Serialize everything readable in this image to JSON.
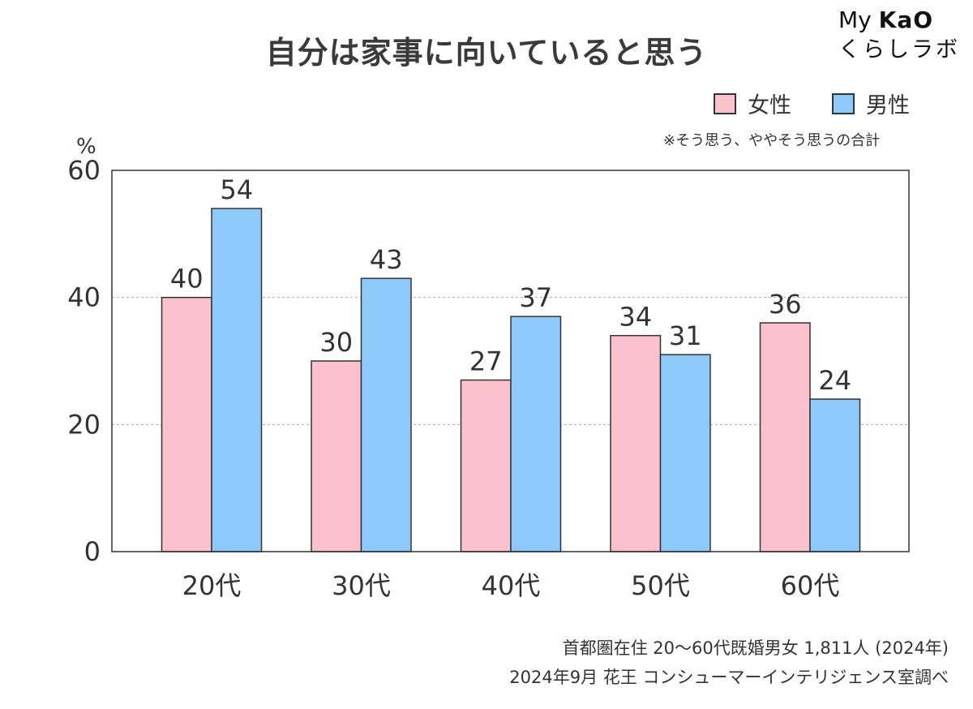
{
  "logo": {
    "line1_prefix": "My",
    "line1_brand": "KaO",
    "line2": "くらしラボ"
  },
  "note": "※そう思う、ややそう思うの合計",
  "source": {
    "line1": "首都圏在住 20〜60代既婚男女 1,811人 (2024年)",
    "line2": "2024年9月 花王 コンシューマーインテリジェンス室調べ"
  },
  "colors": {
    "female": "#fbc1cd",
    "male": "#8ec9fb",
    "axis": "#333333",
    "grid": "#aaaaaa"
  },
  "chart_data": {
    "type": "bar",
    "title": "自分は家事に向いていると思う",
    "ylabel": "%",
    "xlabel": "",
    "ylim": [
      0,
      60
    ],
    "yticks": [
      0,
      20,
      40,
      60
    ],
    "grid": true,
    "legend_position": "top-right",
    "categories": [
      "20代",
      "30代",
      "40代",
      "50代",
      "60代"
    ],
    "series": [
      {
        "name": "女性",
        "values": [
          40,
          30,
          27,
          34,
          36
        ]
      },
      {
        "name": "男性",
        "values": [
          54,
          43,
          37,
          31,
          24
        ]
      }
    ]
  }
}
